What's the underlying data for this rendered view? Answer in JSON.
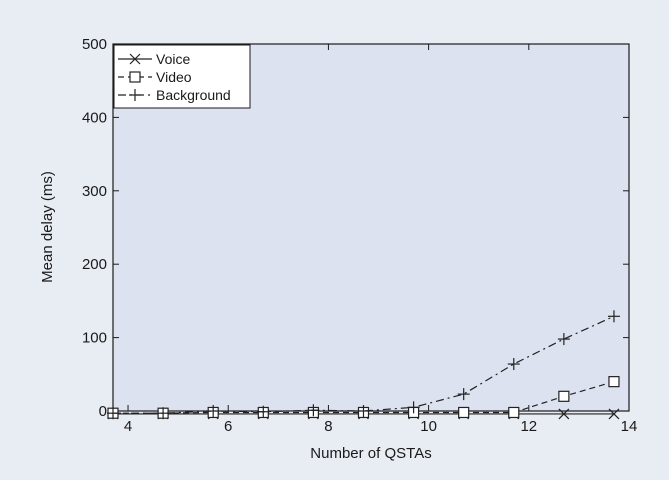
{
  "colors": {
    "figure_bg": "#e8ecf3",
    "plot_bg": "#dde2f0",
    "line": "#222222"
  },
  "chart_data": {
    "type": "line",
    "xlabel": "Number of QSTAs",
    "ylabel": "Mean delay (ms)",
    "xlim": [
      3.7,
      14
    ],
    "ylim": [
      0,
      500
    ],
    "xticks": [
      4,
      6,
      8,
      10,
      12,
      14
    ],
    "yticks": [
      0,
      100,
      200,
      300,
      400,
      500
    ],
    "grid": false,
    "legend_position": "top-left",
    "x": [
      3.7,
      4.7,
      5.7,
      6.7,
      7.7,
      8.7,
      9.7,
      10.7,
      11.7,
      12.7,
      13.7
    ],
    "series": [
      {
        "name": "Voice",
        "marker": "x",
        "linestyle": "solid",
        "values": [
          -4,
          -4,
          -4,
          -4,
          -4,
          -4,
          -4,
          -4,
          -4,
          -4,
          -4
        ]
      },
      {
        "name": "Video",
        "marker": "square",
        "linestyle": "dashed",
        "values": [
          -3,
          -3,
          -2,
          -2,
          -2,
          -2,
          -2,
          -2,
          -2,
          20,
          40
        ]
      },
      {
        "name": "Background",
        "marker": "plus",
        "linestyle": "dashdot",
        "values": [
          -3,
          -3,
          0,
          -1,
          1,
          0,
          5,
          23,
          64,
          98,
          129
        ]
      }
    ]
  }
}
